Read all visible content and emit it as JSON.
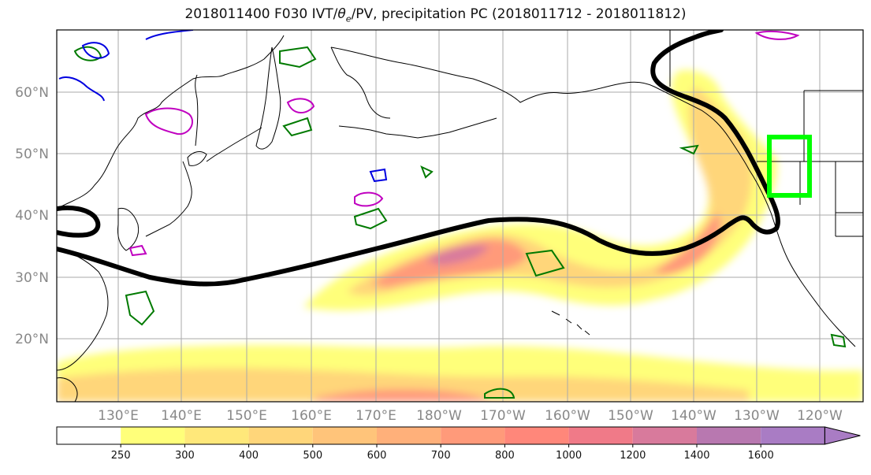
{
  "title": {
    "prefix": "2018011400 F030 IVT/",
    "theta": "θ",
    "sub": "e",
    "suffix": "/PV, precipitation PC (2018011712 - 2018011812)"
  },
  "lat_labels": [
    "60°N",
    "50°N",
    "40°N",
    "30°N",
    "20°N"
  ],
  "lon_labels": [
    "130°E",
    "140°E",
    "150°E",
    "160°E",
    "170°E",
    "180°W",
    "170°W",
    "160°W",
    "150°W",
    "140°W",
    "130°W",
    "120°W"
  ],
  "colorbar": {
    "ticks": [
      "250",
      "300",
      "400",
      "500",
      "600",
      "700",
      "800",
      "1000",
      "1200",
      "1400",
      "1600"
    ],
    "colors": [
      "#ffff7a",
      "#ffe87a",
      "#ffd67a",
      "#ffc47a",
      "#ffb07a",
      "#ff9a7a",
      "#ff877a",
      "#f07a88",
      "#d87a9c",
      "#b878b0",
      "#a97cc4"
    ]
  },
  "colors": {
    "ivt_contour": "#000000",
    "theta_e_contour": "#007a00",
    "pv_contour_magenta": "#c000c0",
    "pv_contour_blue": "#0000e0",
    "highlight_box": "#00ff00"
  }
}
